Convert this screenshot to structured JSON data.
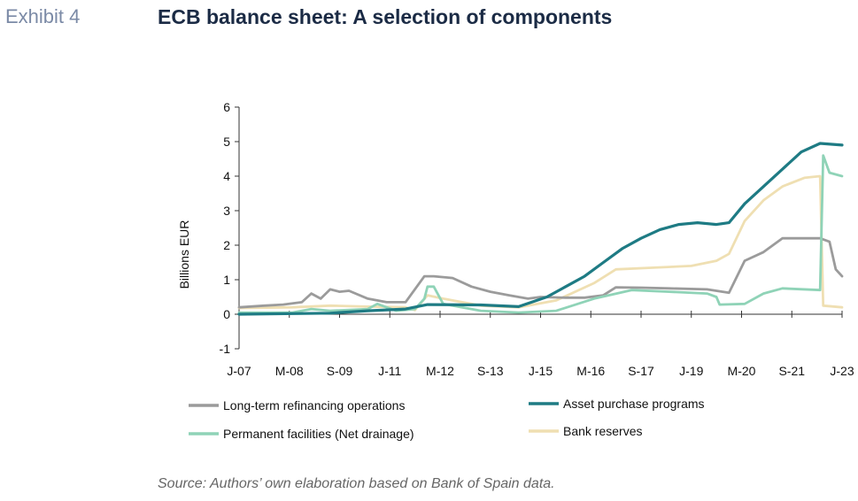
{
  "header": {
    "exhibit": "Exhibit 4",
    "title": "ECB balance sheet: A selection of components"
  },
  "source": "Source: Authors’ own elaboration based on Bank of Spain data.",
  "colors": {
    "ltro": "#9b9b9b",
    "app": "#1e7b84",
    "pf": "#8fd3b7",
    "reserves": "#efdfb2"
  },
  "chart_data": {
    "type": "line",
    "ylabel": "Billions EUR",
    "xlabel": "",
    "ylim": [
      -1,
      6
    ],
    "yticks": [
      -1,
      0,
      1,
      2,
      3,
      4,
      5,
      6
    ],
    "xlim": [
      "2007-01",
      "2023-01"
    ],
    "xticks": [
      "J-07",
      "M-08",
      "S-09",
      "J-11",
      "M-12",
      "S-13",
      "J-15",
      "M-16",
      "S-17",
      "J-19",
      "M-20",
      "S-21",
      "J-23"
    ],
    "grid": false,
    "legend": "bottom",
    "series": [
      {
        "name": "Long-term refinancing operations",
        "color_key": "ltro",
        "points": [
          [
            "2007-01",
            0.2
          ],
          [
            "2007-09",
            0.25
          ],
          [
            "2008-03",
            0.28
          ],
          [
            "2008-09",
            0.35
          ],
          [
            "2008-12",
            0.6
          ],
          [
            "2009-03",
            0.45
          ],
          [
            "2009-06",
            0.72
          ],
          [
            "2009-09",
            0.65
          ],
          [
            "2009-12",
            0.68
          ],
          [
            "2010-06",
            0.45
          ],
          [
            "2010-12",
            0.35
          ],
          [
            "2011-06",
            0.35
          ],
          [
            "2011-12",
            1.1
          ],
          [
            "2012-03",
            1.1
          ],
          [
            "2012-09",
            1.05
          ],
          [
            "2013-03",
            0.8
          ],
          [
            "2013-09",
            0.65
          ],
          [
            "2014-03",
            0.55
          ],
          [
            "2014-09",
            0.45
          ],
          [
            "2015-01",
            0.5
          ],
          [
            "2015-09",
            0.48
          ],
          [
            "2016-03",
            0.48
          ],
          [
            "2016-09",
            0.55
          ],
          [
            "2017-01",
            0.78
          ],
          [
            "2017-09",
            0.77
          ],
          [
            "2018-06",
            0.75
          ],
          [
            "2019-06",
            0.72
          ],
          [
            "2020-01",
            0.62
          ],
          [
            "2020-06",
            1.55
          ],
          [
            "2020-12",
            1.8
          ],
          [
            "2021-06",
            2.2
          ],
          [
            "2022-06",
            2.2
          ],
          [
            "2022-09",
            2.1
          ],
          [
            "2022-11",
            1.3
          ],
          [
            "2023-01",
            1.1
          ]
        ]
      },
      {
        "name": "Asset purchase programs",
        "color_key": "app",
        "points": [
          [
            "2007-01",
            0.0
          ],
          [
            "2009-06",
            0.03
          ],
          [
            "2010-06",
            0.1
          ],
          [
            "2011-06",
            0.15
          ],
          [
            "2012-01",
            0.28
          ],
          [
            "2013-06",
            0.27
          ],
          [
            "2014-06",
            0.22
          ],
          [
            "2015-03",
            0.5
          ],
          [
            "2015-09",
            0.8
          ],
          [
            "2016-03",
            1.1
          ],
          [
            "2016-09",
            1.5
          ],
          [
            "2017-03",
            1.9
          ],
          [
            "2017-09",
            2.2
          ],
          [
            "2018-03",
            2.45
          ],
          [
            "2018-09",
            2.6
          ],
          [
            "2019-03",
            2.65
          ],
          [
            "2019-09",
            2.6
          ],
          [
            "2020-01",
            2.65
          ],
          [
            "2020-06",
            3.2
          ],
          [
            "2020-12",
            3.7
          ],
          [
            "2021-06",
            4.2
          ],
          [
            "2021-12",
            4.7
          ],
          [
            "2022-06",
            4.95
          ],
          [
            "2023-01",
            4.9
          ]
        ]
      },
      {
        "name": "Permanent facilities (Net drainage)",
        "color_key": "pf",
        "points": [
          [
            "2007-01",
            0.05
          ],
          [
            "2008-06",
            0.05
          ],
          [
            "2008-12",
            0.15
          ],
          [
            "2009-06",
            0.1
          ],
          [
            "2010-06",
            0.15
          ],
          [
            "2010-09",
            0.3
          ],
          [
            "2011-03",
            0.1
          ],
          [
            "2011-09",
            0.15
          ],
          [
            "2011-12",
            0.45
          ],
          [
            "2012-01",
            0.8
          ],
          [
            "2012-03",
            0.8
          ],
          [
            "2012-06",
            0.3
          ],
          [
            "2013-06",
            0.1
          ],
          [
            "2014-06",
            0.05
          ],
          [
            "2015-06",
            0.1
          ],
          [
            "2016-06",
            0.45
          ],
          [
            "2017-06",
            0.7
          ],
          [
            "2018-06",
            0.65
          ],
          [
            "2019-06",
            0.6
          ],
          [
            "2019-09",
            0.5
          ],
          [
            "2019-10",
            0.28
          ],
          [
            "2020-06",
            0.3
          ],
          [
            "2020-12",
            0.6
          ],
          [
            "2021-06",
            0.75
          ],
          [
            "2022-06",
            0.7
          ],
          [
            "2022-07",
            4.6
          ],
          [
            "2022-09",
            4.1
          ],
          [
            "2023-01",
            4.0
          ]
        ]
      },
      {
        "name": "Bank reserves",
        "color_key": "reserves",
        "points": [
          [
            "2007-01",
            0.18
          ],
          [
            "2008-06",
            0.2
          ],
          [
            "2009-06",
            0.25
          ],
          [
            "2010-06",
            0.22
          ],
          [
            "2011-06",
            0.2
          ],
          [
            "2011-09",
            0.12
          ],
          [
            "2012-01",
            0.55
          ],
          [
            "2012-06",
            0.45
          ],
          [
            "2013-06",
            0.25
          ],
          [
            "2014-06",
            0.2
          ],
          [
            "2015-06",
            0.4
          ],
          [
            "2016-06",
            0.9
          ],
          [
            "2017-01",
            1.3
          ],
          [
            "2018-01",
            1.35
          ],
          [
            "2019-01",
            1.4
          ],
          [
            "2019-09",
            1.55
          ],
          [
            "2020-01",
            1.75
          ],
          [
            "2020-06",
            2.7
          ],
          [
            "2020-12",
            3.3
          ],
          [
            "2021-06",
            3.7
          ],
          [
            "2022-01",
            3.95
          ],
          [
            "2022-06",
            4.0
          ],
          [
            "2022-07",
            0.25
          ],
          [
            "2023-01",
            0.2
          ]
        ]
      }
    ]
  }
}
